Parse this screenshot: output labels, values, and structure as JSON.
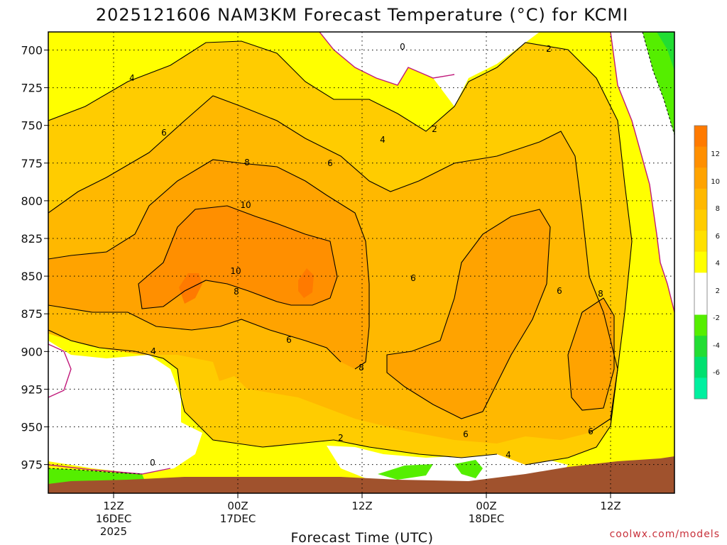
{
  "chart_data": {
    "type": "heatmap",
    "title": "2025121606 NAM3KM Forecast Temperature (°C) for KCMI",
    "xlabel": "Forecast Time (UTC)",
    "ylabel": "",
    "y_axis": {
      "ticks": [
        700,
        725,
        750,
        775,
        800,
        825,
        850,
        875,
        900,
        925,
        950,
        975
      ],
      "inverted": true,
      "range": [
        688,
        994
      ]
    },
    "x_axis": {
      "ticks": [
        {
          "label": "12Z",
          "sub": "16DEC",
          "sub2": "2025"
        },
        {
          "label": "00Z",
          "sub": "17DEC",
          "sub2": ""
        },
        {
          "label": "12Z",
          "sub": "",
          "sub2": ""
        },
        {
          "label": "00Z",
          "sub": "18DEC",
          "sub2": ""
        },
        {
          "label": "12Z",
          "sub": "",
          "sub2": ""
        }
      ]
    },
    "grid": true,
    "colorbar": {
      "ticks": [
        "12",
        "10",
        "8",
        "6",
        "4",
        "2",
        "-2",
        "-4",
        "-6"
      ],
      "colors": [
        "#ff7a00",
        "#ff8f00",
        "#ffa300",
        "#ffb800",
        "#ffcc00",
        "#ffe000",
        "#ffff00",
        "#ffffff",
        "#ffffff",
        "#55ee00",
        "#22dd33",
        "#00e070",
        "#00f0a0"
      ]
    },
    "contour_labels": [
      "4",
      "6",
      "8",
      "10",
      "10",
      "8",
      "6",
      "4",
      "2",
      "0",
      "0",
      "2",
      "2",
      "4",
      "6",
      "6",
      "8",
      "6",
      "8",
      "6",
      "6",
      "4"
    ],
    "terrain_color": "#a0522d"
  },
  "credit": "coolwx.com/models"
}
